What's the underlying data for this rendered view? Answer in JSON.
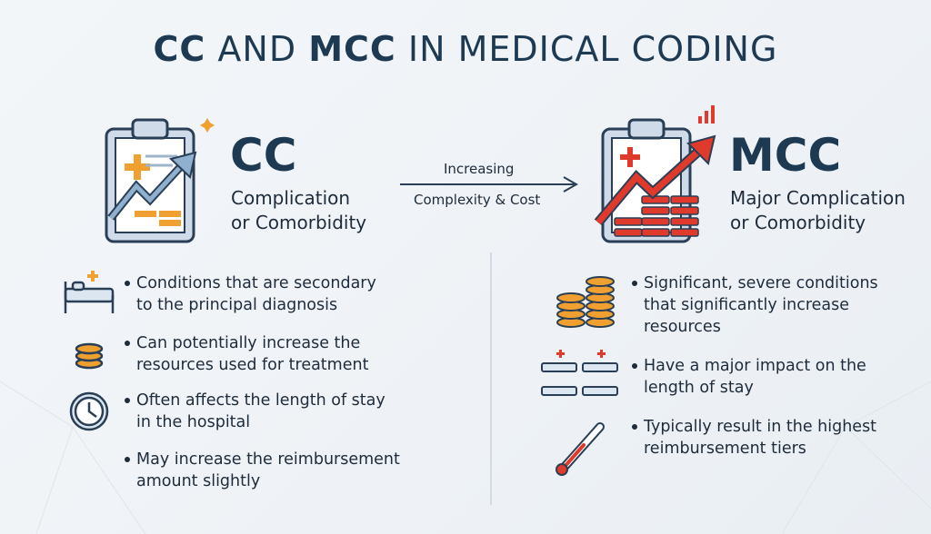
{
  "header": {
    "title_parts": [
      "CC",
      "AND",
      "MCC",
      "IN MEDICAL CODING"
    ]
  },
  "left": {
    "abbr": "CC",
    "name_lines": [
      "Complication",
      "or Comorbidity"
    ],
    "bullets": [
      [
        "Conditions that are secondary",
        "to the principal diagnosis"
      ],
      [
        "Can potentially increase the",
        "resources used for treatment"
      ],
      [
        "Often affects the length of stay",
        "in the hospital"
      ],
      [
        "May increase the reimbursement",
        "amount slightly"
      ]
    ]
  },
  "arrow": {
    "top": "Increasing",
    "bottom": "Complexity & Cost"
  },
  "right": {
    "abbr": "MCC",
    "name_lines": [
      "Major Complication",
      "or Comorbidity"
    ],
    "bullets": [
      [
        "Significant, severe conditions",
        "that significantly increase",
        "resources"
      ],
      [
        "Have a major impact on the",
        "length of stay"
      ],
      [
        "Typically result in the highest",
        "reimbursement tiers"
      ]
    ]
  }
}
